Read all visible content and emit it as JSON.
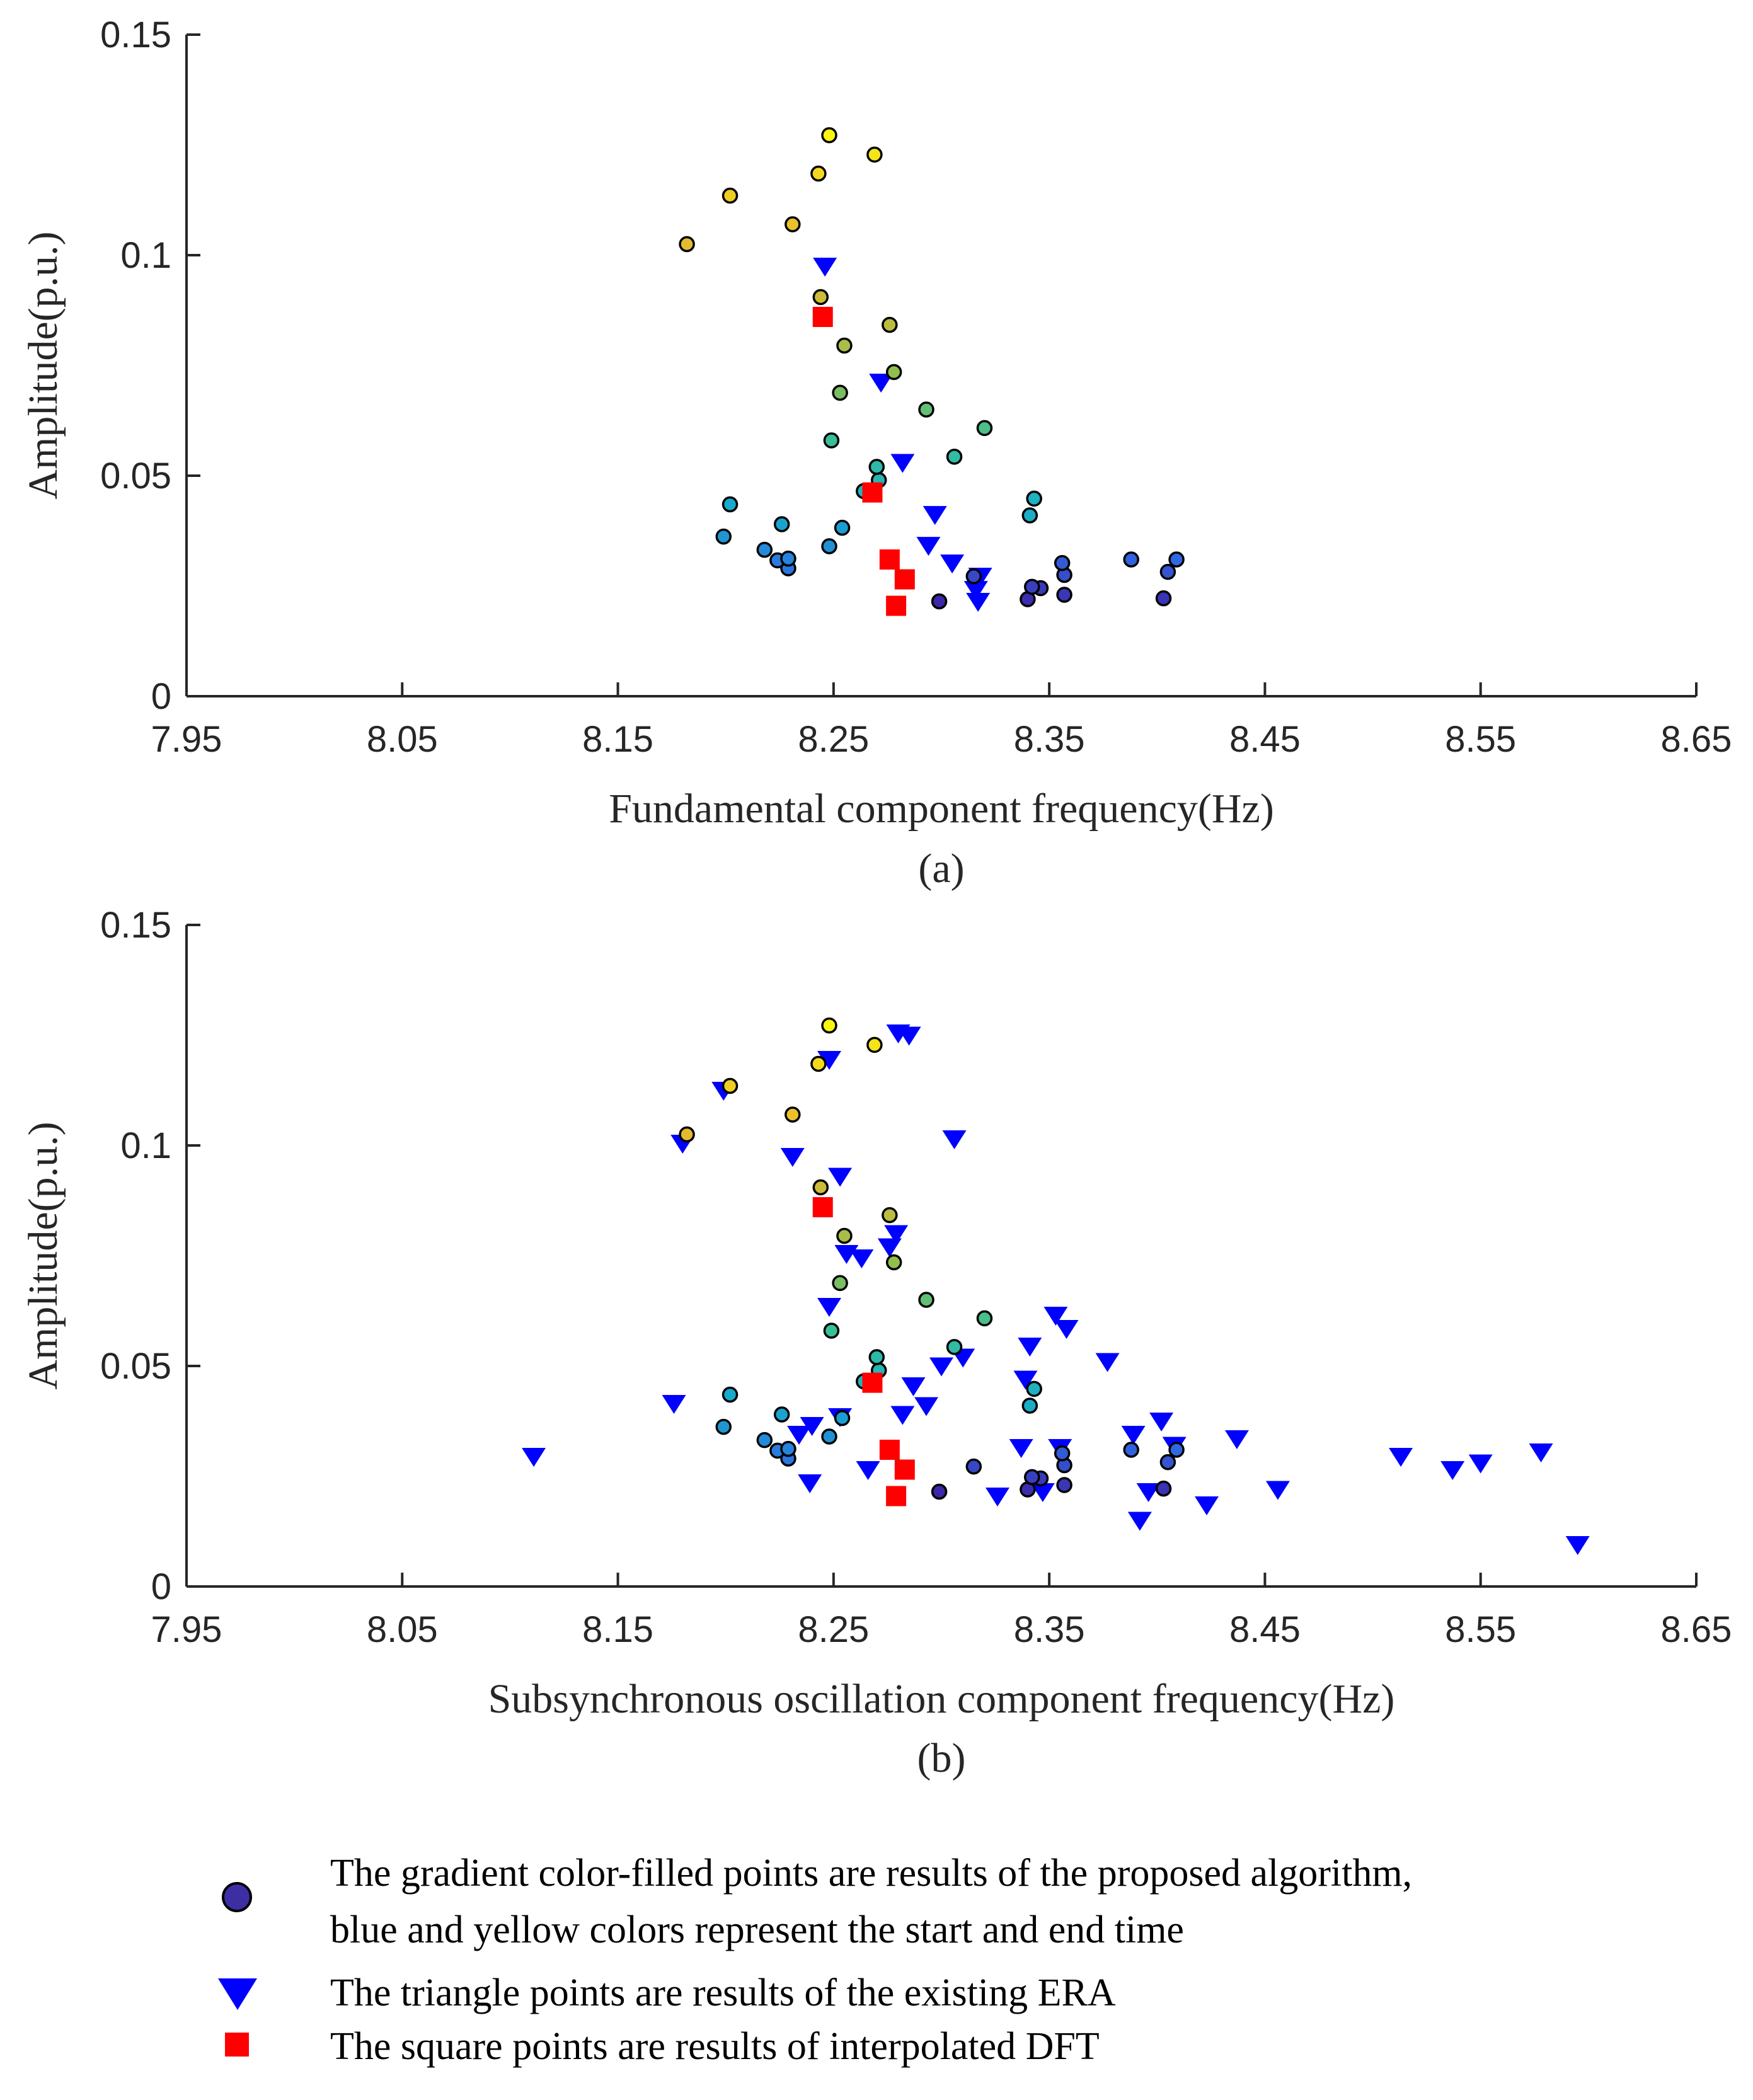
{
  "colors": {
    "axis": "#262626",
    "triangle": "#0000ff",
    "square": "#ff0000",
    "circle_start": "#3d26a8",
    "circle_end": "#f9f50e",
    "legend_circle": "#3d2fa3"
  },
  "legend": {
    "circle_line1": "The gradient color-filled points are results of the proposed algorithm,",
    "circle_line2": "blue and yellow colors represent the start and end time",
    "triangle_text": "The triangle points are results of the existing ERA",
    "square_text": "The square points are results of interpolated DFT"
  },
  "chart_data": [
    {
      "type": "scatter",
      "panel": "a",
      "caption": "(a)",
      "xlabel": "Fundamental component frequency(Hz)",
      "ylabel": "Amplitude(p.u.)",
      "xlim": [
        7.95,
        8.65
      ],
      "ylim": [
        0,
        0.15
      ],
      "xticks": [
        "7.95",
        "8.05",
        "8.15",
        "8.25",
        "8.35",
        "8.45",
        "8.55",
        "8.65"
      ],
      "yticks": [
        "0",
        "0.05",
        "0.1",
        "0.15"
      ],
      "series": [
        {
          "name": "Proposed algorithm (gradient circles, blue = start time, yellow = end time)",
          "marker": "circle",
          "points": [
            {
              "x": 8.299,
              "y": 0.0215,
              "t": 0.0
            },
            {
              "x": 8.34,
              "y": 0.022,
              "t": 0.02
            },
            {
              "x": 8.403,
              "y": 0.0222,
              "t": 0.04
            },
            {
              "x": 8.357,
              "y": 0.023,
              "t": 0.05
            },
            {
              "x": 8.346,
              "y": 0.0245,
              "t": 0.06
            },
            {
              "x": 8.342,
              "y": 0.0248,
              "t": 0.08
            },
            {
              "x": 8.315,
              "y": 0.0272,
              "t": 0.1
            },
            {
              "x": 8.357,
              "y": 0.0275,
              "t": 0.12
            },
            {
              "x": 8.405,
              "y": 0.0282,
              "t": 0.14
            },
            {
              "x": 8.356,
              "y": 0.0302,
              "t": 0.16
            },
            {
              "x": 8.388,
              "y": 0.031,
              "t": 0.18
            },
            {
              "x": 8.409,
              "y": 0.031,
              "t": 0.2
            },
            {
              "x": 8.229,
              "y": 0.029,
              "t": 0.24
            },
            {
              "x": 8.224,
              "y": 0.0308,
              "t": 0.26
            },
            {
              "x": 8.229,
              "y": 0.0312,
              "t": 0.28
            },
            {
              "x": 8.218,
              "y": 0.0332,
              "t": 0.3
            },
            {
              "x": 8.248,
              "y": 0.034,
              "t": 0.32
            },
            {
              "x": 8.199,
              "y": 0.0362,
              "t": 0.34
            },
            {
              "x": 8.254,
              "y": 0.0382,
              "t": 0.36
            },
            {
              "x": 8.226,
              "y": 0.039,
              "t": 0.38
            },
            {
              "x": 8.202,
              "y": 0.0435,
              "t": 0.4
            },
            {
              "x": 8.341,
              "y": 0.041,
              "t": 0.42
            },
            {
              "x": 8.343,
              "y": 0.0448,
              "t": 0.44
            },
            {
              "x": 8.264,
              "y": 0.0465,
              "t": 0.46
            },
            {
              "x": 8.271,
              "y": 0.049,
              "t": 0.48
            },
            {
              "x": 8.27,
              "y": 0.052,
              "t": 0.5
            },
            {
              "x": 8.306,
              "y": 0.0543,
              "t": 0.52
            },
            {
              "x": 8.249,
              "y": 0.058,
              "t": 0.55
            },
            {
              "x": 8.32,
              "y": 0.0608,
              "t": 0.58
            },
            {
              "x": 8.293,
              "y": 0.065,
              "t": 0.62
            },
            {
              "x": 8.253,
              "y": 0.0688,
              "t": 0.66
            },
            {
              "x": 8.278,
              "y": 0.0735,
              "t": 0.7
            },
            {
              "x": 8.255,
              "y": 0.0795,
              "t": 0.74
            },
            {
              "x": 8.276,
              "y": 0.0842,
              "t": 0.77
            },
            {
              "x": 8.244,
              "y": 0.0905,
              "t": 0.8
            },
            {
              "x": 8.182,
              "y": 0.1025,
              "t": 0.84
            },
            {
              "x": 8.231,
              "y": 0.107,
              "t": 0.87
            },
            {
              "x": 8.202,
              "y": 0.1135,
              "t": 0.9
            },
            {
              "x": 8.243,
              "y": 0.1185,
              "t": 0.93
            },
            {
              "x": 8.269,
              "y": 0.1228,
              "t": 0.96
            },
            {
              "x": 8.248,
              "y": 0.1272,
              "t": 1.0
            }
          ]
        },
        {
          "name": "Existing ERA (triangles)",
          "marker": "triangle",
          "points": [
            {
              "x": 8.246,
              "y": 0.0975
            },
            {
              "x": 8.272,
              "y": 0.0712
            },
            {
              "x": 8.282,
              "y": 0.053
            },
            {
              "x": 8.297,
              "y": 0.0412
            },
            {
              "x": 8.294,
              "y": 0.0342
            },
            {
              "x": 8.305,
              "y": 0.0302
            },
            {
              "x": 8.318,
              "y": 0.0272
            },
            {
              "x": 8.316,
              "y": 0.0242
            },
            {
              "x": 8.317,
              "y": 0.0215
            }
          ]
        },
        {
          "name": "Interpolated DFT (squares)",
          "marker": "square",
          "points": [
            {
              "x": 8.245,
              "y": 0.086
            },
            {
              "x": 8.268,
              "y": 0.0462
            },
            {
              "x": 8.276,
              "y": 0.031
            },
            {
              "x": 8.283,
              "y": 0.0265
            },
            {
              "x": 8.279,
              "y": 0.0205
            }
          ]
        }
      ]
    },
    {
      "type": "scatter",
      "panel": "b",
      "caption": "(b)",
      "xlabel": "Subsynchronous oscillation component frequency(Hz)",
      "ylabel": "Amplitude(p.u.)",
      "xlim": [
        7.95,
        8.65
      ],
      "ylim": [
        0,
        0.15
      ],
      "xticks": [
        "7.95",
        "8.05",
        "8.15",
        "8.25",
        "8.35",
        "8.45",
        "8.55",
        "8.65"
      ],
      "yticks": [
        "0",
        "0.05",
        "0.1",
        "0.15"
      ],
      "series": [
        {
          "name": "Proposed algorithm (gradient circles, blue = start time, yellow = end time)",
          "marker": "circle",
          "points": [
            {
              "x": 8.299,
              "y": 0.0215,
              "t": 0.0
            },
            {
              "x": 8.34,
              "y": 0.022,
              "t": 0.02
            },
            {
              "x": 8.403,
              "y": 0.0222,
              "t": 0.04
            },
            {
              "x": 8.357,
              "y": 0.023,
              "t": 0.05
            },
            {
              "x": 8.346,
              "y": 0.0245,
              "t": 0.06
            },
            {
              "x": 8.342,
              "y": 0.0248,
              "t": 0.08
            },
            {
              "x": 8.315,
              "y": 0.0272,
              "t": 0.1
            },
            {
              "x": 8.357,
              "y": 0.0275,
              "t": 0.12
            },
            {
              "x": 8.405,
              "y": 0.0282,
              "t": 0.14
            },
            {
              "x": 8.356,
              "y": 0.0302,
              "t": 0.16
            },
            {
              "x": 8.388,
              "y": 0.031,
              "t": 0.18
            },
            {
              "x": 8.409,
              "y": 0.031,
              "t": 0.2
            },
            {
              "x": 8.229,
              "y": 0.029,
              "t": 0.24
            },
            {
              "x": 8.224,
              "y": 0.0308,
              "t": 0.26
            },
            {
              "x": 8.229,
              "y": 0.0312,
              "t": 0.28
            },
            {
              "x": 8.218,
              "y": 0.0332,
              "t": 0.3
            },
            {
              "x": 8.248,
              "y": 0.034,
              "t": 0.32
            },
            {
              "x": 8.199,
              "y": 0.0362,
              "t": 0.34
            },
            {
              "x": 8.254,
              "y": 0.0382,
              "t": 0.36
            },
            {
              "x": 8.226,
              "y": 0.039,
              "t": 0.38
            },
            {
              "x": 8.202,
              "y": 0.0435,
              "t": 0.4
            },
            {
              "x": 8.341,
              "y": 0.041,
              "t": 0.42
            },
            {
              "x": 8.343,
              "y": 0.0448,
              "t": 0.44
            },
            {
              "x": 8.264,
              "y": 0.0465,
              "t": 0.46
            },
            {
              "x": 8.271,
              "y": 0.049,
              "t": 0.48
            },
            {
              "x": 8.27,
              "y": 0.052,
              "t": 0.5
            },
            {
              "x": 8.306,
              "y": 0.0543,
              "t": 0.52
            },
            {
              "x": 8.249,
              "y": 0.058,
              "t": 0.55
            },
            {
              "x": 8.32,
              "y": 0.0608,
              "t": 0.58
            },
            {
              "x": 8.293,
              "y": 0.065,
              "t": 0.62
            },
            {
              "x": 8.253,
              "y": 0.0688,
              "t": 0.66
            },
            {
              "x": 8.278,
              "y": 0.0735,
              "t": 0.7
            },
            {
              "x": 8.255,
              "y": 0.0795,
              "t": 0.74
            },
            {
              "x": 8.276,
              "y": 0.0842,
              "t": 0.77
            },
            {
              "x": 8.244,
              "y": 0.0905,
              "t": 0.8
            },
            {
              "x": 8.182,
              "y": 0.1025,
              "t": 0.84
            },
            {
              "x": 8.231,
              "y": 0.107,
              "t": 0.87
            },
            {
              "x": 8.202,
              "y": 0.1135,
              "t": 0.9
            },
            {
              "x": 8.243,
              "y": 0.1185,
              "t": 0.93
            },
            {
              "x": 8.269,
              "y": 0.1228,
              "t": 0.96
            },
            {
              "x": 8.248,
              "y": 0.1272,
              "t": 1.0
            }
          ]
        },
        {
          "name": "Existing ERA (triangles)",
          "marker": "triangle",
          "points": [
            {
              "x": 8.111,
              "y": 0.0295
            },
            {
              "x": 8.18,
              "y": 0.1005
            },
            {
              "x": 8.199,
              "y": 0.1125
            },
            {
              "x": 8.231,
              "y": 0.0975
            },
            {
              "x": 8.248,
              "y": 0.1195
            },
            {
              "x": 8.253,
              "y": 0.093
            },
            {
              "x": 8.28,
              "y": 0.1255
            },
            {
              "x": 8.285,
              "y": 0.125
            },
            {
              "x": 8.306,
              "y": 0.1015
            },
            {
              "x": 8.279,
              "y": 0.08
            },
            {
              "x": 8.276,
              "y": 0.077
            },
            {
              "x": 8.256,
              "y": 0.0755
            },
            {
              "x": 8.263,
              "y": 0.0745
            },
            {
              "x": 8.248,
              "y": 0.0635
            },
            {
              "x": 8.176,
              "y": 0.0415
            },
            {
              "x": 8.234,
              "y": 0.0345
            },
            {
              "x": 8.24,
              "y": 0.0365
            },
            {
              "x": 8.253,
              "y": 0.0385
            },
            {
              "x": 8.239,
              "y": 0.0235
            },
            {
              "x": 8.266,
              "y": 0.0265
            },
            {
              "x": 8.282,
              "y": 0.039
            },
            {
              "x": 8.287,
              "y": 0.0455
            },
            {
              "x": 8.293,
              "y": 0.041
            },
            {
              "x": 8.3,
              "y": 0.05
            },
            {
              "x": 8.31,
              "y": 0.052
            },
            {
              "x": 8.326,
              "y": 0.0205
            },
            {
              "x": 8.337,
              "y": 0.0315
            },
            {
              "x": 8.339,
              "y": 0.047
            },
            {
              "x": 8.341,
              "y": 0.0545
            },
            {
              "x": 8.353,
              "y": 0.0615
            },
            {
              "x": 8.358,
              "y": 0.0585
            },
            {
              "x": 8.355,
              "y": 0.0315
            },
            {
              "x": 8.347,
              "y": 0.0215
            },
            {
              "x": 8.377,
              "y": 0.051
            },
            {
              "x": 8.389,
              "y": 0.0345
            },
            {
              "x": 8.392,
              "y": 0.015
            },
            {
              "x": 8.396,
              "y": 0.0215
            },
            {
              "x": 8.402,
              "y": 0.0375
            },
            {
              "x": 8.408,
              "y": 0.032
            },
            {
              "x": 8.423,
              "y": 0.0185
            },
            {
              "x": 8.437,
              "y": 0.0335
            },
            {
              "x": 8.456,
              "y": 0.022
            },
            {
              "x": 8.513,
              "y": 0.0295
            },
            {
              "x": 8.537,
              "y": 0.0265
            },
            {
              "x": 8.55,
              "y": 0.028
            },
            {
              "x": 8.578,
              "y": 0.0305
            },
            {
              "x": 8.595,
              "y": 0.0095
            }
          ]
        },
        {
          "name": "Interpolated DFT (squares)",
          "marker": "square",
          "points": [
            {
              "x": 8.245,
              "y": 0.086
            },
            {
              "x": 8.268,
              "y": 0.0462
            },
            {
              "x": 8.276,
              "y": 0.031
            },
            {
              "x": 8.283,
              "y": 0.0265
            },
            {
              "x": 8.279,
              "y": 0.0205
            }
          ]
        }
      ]
    }
  ]
}
